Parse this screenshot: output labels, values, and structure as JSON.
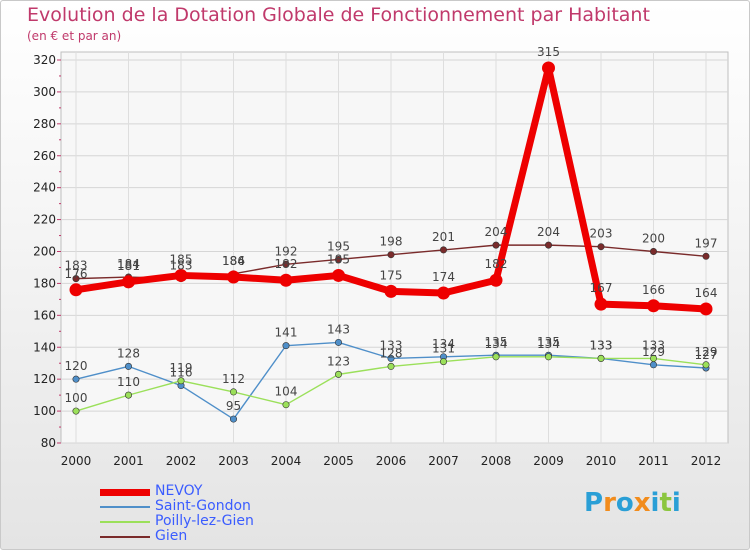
{
  "header": {
    "title": "Evolution de la Dotation Globale de Fonctionnement par Habitant",
    "subtitle": "(en € et par an)"
  },
  "brand": {
    "letters": [
      "P",
      "r",
      "o",
      "x",
      "i",
      "t",
      "i"
    ],
    "colors": [
      "#2a9fd6",
      "#f28c1c",
      "#2a9fd6",
      "#f28c1c",
      "#2a9fd6",
      "#8cc63f",
      "#2a9fd6"
    ]
  },
  "chart_data": {
    "type": "line",
    "title": "Evolution de la Dotation Globale de Fonctionnement par Habitant",
    "ylabel": "(en € et par an)",
    "xlabel": "",
    "categories": [
      "2000",
      "2001",
      "2002",
      "2003",
      "2004",
      "2005",
      "2006",
      "2007",
      "2008",
      "2009",
      "2010",
      "2011",
      "2012"
    ],
    "ylim": [
      80,
      320
    ],
    "yticks": [
      80,
      100,
      120,
      140,
      160,
      180,
      200,
      220,
      240,
      260,
      280,
      300,
      320
    ],
    "grid": true,
    "legend_position": "bottom-left",
    "series": [
      {
        "name": "NEVOY",
        "color": "#ee0000",
        "values": [
          176,
          181,
          185,
          184,
          182,
          185,
          175,
          174,
          182,
          315,
          167,
          166,
          164
        ]
      },
      {
        "name": "Saint-Gondon",
        "color": "#4f8fc9",
        "values": [
          120,
          128,
          116,
          95,
          141,
          143,
          133,
          134,
          135,
          135,
          133,
          129,
          127
        ]
      },
      {
        "name": "Poilly-lez-Gien",
        "color": "#9be05a",
        "values": [
          100,
          110,
          119,
          112,
          104,
          123,
          128,
          131,
          134,
          134,
          133,
          133,
          129
        ]
      },
      {
        "name": "Gien",
        "color": "#7a2b2b",
        "values": [
          183,
          184,
          183,
          186,
          192,
          195,
          198,
          201,
          204,
          204,
          203,
          200,
          197
        ]
      }
    ]
  }
}
